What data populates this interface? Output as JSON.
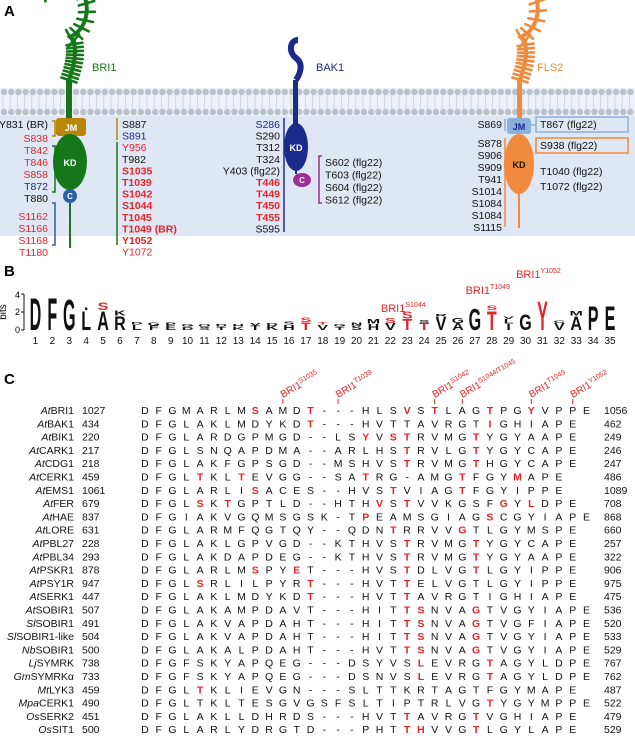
{
  "colors": {
    "red": "#e5242a",
    "navy": "#1c2a8c",
    "green": "#15771a",
    "brown": "#b8860b",
    "orange": "#f08a3c",
    "purple": "#9c2f95",
    "blue": "#2e5fa8",
    "lightblue": "#8ab0dc",
    "membrane_bg": "#e8eef8",
    "cytoplasm_bg": "#dde6f3"
  },
  "panelA": {
    "label": "A",
    "receptors": [
      {
        "name": "BRI1",
        "domains": {
          "jm": "JM",
          "kd": "KD",
          "ct": "C"
        },
        "left_sites": [
          {
            "t": "Y831 (BR)",
            "c": "dark"
          },
          {
            "t": "S838",
            "c": "red"
          },
          {
            "t": "T842",
            "c": "red"
          },
          {
            "t": "T846",
            "c": "red"
          },
          {
            "t": "S858",
            "c": "red"
          },
          {
            "t": "T872",
            "c": "navy"
          },
          {
            "t": "T880",
            "c": "dark"
          },
          {
            "t": "S1162",
            "c": "red"
          },
          {
            "t": "S1166",
            "c": "red"
          },
          {
            "t": "S1168",
            "c": "red"
          },
          {
            "t": "T1180",
            "c": "red"
          }
        ],
        "right_sites": [
          {
            "t": "S887",
            "c": "dark",
            "b": false
          },
          {
            "t": "S891",
            "c": "navy",
            "b": false
          },
          {
            "t": "Y956",
            "c": "red",
            "b": false
          },
          {
            "t": "T982",
            "c": "dark",
            "b": false
          },
          {
            "t": "S1035",
            "c": "red",
            "b": true
          },
          {
            "t": "T1039",
            "c": "red",
            "b": true
          },
          {
            "t": "S1042",
            "c": "red",
            "b": true
          },
          {
            "t": "S1044",
            "c": "red",
            "b": true
          },
          {
            "t": "T1045",
            "c": "red",
            "b": true
          },
          {
            "t": "T1049 (BR)",
            "c": "red",
            "b": true
          },
          {
            "t": "Y1052",
            "c": "red",
            "b": true
          },
          {
            "t": "Y1072",
            "c": "red",
            "b": false
          }
        ]
      },
      {
        "name": "BAK1",
        "domains": {
          "kd": "KD",
          "ct": "C"
        },
        "left_sites": [
          {
            "t": "S286",
            "c": "navy",
            "b": false
          },
          {
            "t": "S290",
            "c": "dark",
            "b": false
          },
          {
            "t": "T312",
            "c": "dark",
            "b": false
          },
          {
            "t": "T324",
            "c": "dark",
            "b": false
          },
          {
            "t": "Y403 (flg22)",
            "c": "dark",
            "b": false
          },
          {
            "t": "T446",
            "c": "red",
            "b": true
          },
          {
            "t": "T449",
            "c": "red",
            "b": true
          },
          {
            "t": "T450",
            "c": "red",
            "b": true
          },
          {
            "t": "T455",
            "c": "red",
            "b": true
          },
          {
            "t": "S595",
            "c": "dark",
            "b": false
          }
        ],
        "right_sites": [
          {
            "t": "S602 (flg22)",
            "c": "dark"
          },
          {
            "t": "T603 (flg22)",
            "c": "dark"
          },
          {
            "t": "S604 (flg22)",
            "c": "dark"
          },
          {
            "t": "S612 (flg22)",
            "c": "dark"
          }
        ]
      },
      {
        "name": "FLS2",
        "domains": {
          "jm": "JM",
          "kd": "KD"
        },
        "left_sites": [
          {
            "t": "S869"
          },
          {
            "t": "S878"
          },
          {
            "t": "S906"
          },
          {
            "t": "S909"
          },
          {
            "t": "T941"
          },
          {
            "t": "S1014"
          },
          {
            "t": "S1084"
          },
          {
            "t": "S1084"
          },
          {
            "t": "S1115"
          }
        ],
        "right_sites": [
          {
            "t": "T867 (flg22)"
          },
          {
            "t": "S938 (flg22)"
          },
          {
            "t": "T1040 (flg22)"
          },
          {
            "t": "T1072 (flg22)"
          }
        ]
      }
    ]
  },
  "panelB": {
    "label": "B",
    "ylabel": "bits",
    "yticks": [
      "0",
      "2",
      "4"
    ],
    "positions": [
      "1",
      "2",
      "3",
      "4",
      "5",
      "6",
      "7",
      "8",
      "9",
      "10",
      "11",
      "12",
      "13",
      "14",
      "15",
      "16",
      "17",
      "18",
      "19",
      "20",
      "21",
      "22",
      "23",
      "24",
      "25",
      "26",
      "27",
      "28",
      "29",
      "30",
      "31",
      "32",
      "33",
      "34",
      "35"
    ],
    "annotations": [
      {
        "base": "BRI1",
        "sup": "S1044",
        "pos": 23
      },
      {
        "base": "BRI1",
        "sup": "T1049",
        "pos": 28
      },
      {
        "base": "BRI1",
        "sup": "Y1052",
        "pos": 31
      }
    ],
    "logo": [
      {
        "pos": 1,
        "letters": [
          {
            "ch": "D",
            "h": 3.7,
            "c": "dark"
          }
        ]
      },
      {
        "pos": 2,
        "letters": [
          {
            "ch": "F",
            "h": 3.7,
            "c": "dark"
          }
        ]
      },
      {
        "pos": 3,
        "letters": [
          {
            "ch": "G",
            "h": 3.5,
            "c": "dark"
          }
        ]
      },
      {
        "pos": 4,
        "letters": [
          {
            "ch": "L",
            "h": 2.2,
            "c": "dark"
          },
          {
            "ch": "I",
            "h": 0.3,
            "c": "dark"
          }
        ]
      },
      {
        "pos": 5,
        "letters": [
          {
            "ch": "A",
            "h": 2.2,
            "c": "dark"
          },
          {
            "ch": "S",
            "h": 0.9,
            "c": "red"
          }
        ]
      },
      {
        "pos": 6,
        "letters": [
          {
            "ch": "R",
            "h": 1.6,
            "c": "dark"
          },
          {
            "ch": "K",
            "h": 0.6,
            "c": "dark"
          }
        ]
      },
      {
        "pos": 7,
        "letters": [
          {
            "ch": "L",
            "h": 0.6,
            "c": "dark"
          },
          {
            "ch": "D",
            "h": 0.3,
            "c": "dark"
          }
        ]
      },
      {
        "pos": 8,
        "letters": [
          {
            "ch": "F",
            "h": 0.5,
            "c": "dark"
          },
          {
            "ch": "G",
            "h": 0.4,
            "c": "dark"
          }
        ]
      },
      {
        "pos": 9,
        "letters": [
          {
            "ch": "E",
            "h": 0.5,
            "c": "dark"
          },
          {
            "ch": "P",
            "h": 0.4,
            "c": "dark"
          }
        ]
      },
      {
        "pos": 10,
        "letters": [
          {
            "ch": "D",
            "h": 0.4,
            "c": "dark"
          },
          {
            "ch": "G",
            "h": 0.3,
            "c": "dark"
          }
        ]
      },
      {
        "pos": 11,
        "letters": [
          {
            "ch": "S",
            "h": 0.4,
            "c": "dark"
          },
          {
            "ch": "Q",
            "h": 0.3,
            "c": "dark"
          }
        ]
      },
      {
        "pos": 12,
        "letters": [
          {
            "ch": "T",
            "h": 0.4,
            "c": "dark"
          },
          {
            "ch": "D",
            "h": 0.3,
            "c": "dark"
          }
        ]
      },
      {
        "pos": 13,
        "letters": [
          {
            "ch": "K",
            "h": 0.4,
            "c": "dark"
          },
          {
            "ch": "H",
            "h": 0.3,
            "c": "dark"
          }
        ]
      },
      {
        "pos": 14,
        "letters": [
          {
            "ch": "T",
            "h": 0.5,
            "c": "dark"
          },
          {
            "ch": "V",
            "h": 0.3,
            "c": "dark"
          }
        ]
      },
      {
        "pos": 15,
        "letters": [
          {
            "ch": "K",
            "h": 0.5,
            "c": "dark"
          },
          {
            "ch": "D",
            "h": 0.3,
            "c": "dark"
          }
        ]
      },
      {
        "pos": 16,
        "letters": [
          {
            "ch": "H",
            "h": 0.6,
            "c": "dark"
          },
          {
            "ch": "S",
            "h": 0.4,
            "c": "dark"
          }
        ]
      },
      {
        "pos": 17,
        "letters": [
          {
            "ch": "T",
            "h": 0.9,
            "c": "red"
          },
          {
            "ch": "S",
            "h": 0.5,
            "c": "red"
          }
        ]
      },
      {
        "pos": 18,
        "letters": [
          {
            "ch": "V",
            "h": 0.6,
            "c": "dark"
          },
          {
            "ch": "T",
            "h": 0.3,
            "c": "red"
          }
        ]
      },
      {
        "pos": 19,
        "letters": [
          {
            "ch": "T",
            "h": 0.4,
            "c": "dark"
          },
          {
            "ch": "G",
            "h": 0.3,
            "c": "dark"
          }
        ]
      },
      {
        "pos": 20,
        "letters": [
          {
            "ch": "S",
            "h": 0.5,
            "c": "dark"
          },
          {
            "ch": "N",
            "h": 0.4,
            "c": "dark"
          }
        ]
      },
      {
        "pos": 21,
        "letters": [
          {
            "ch": "H",
            "h": 0.7,
            "c": "dark"
          },
          {
            "ch": "M",
            "h": 0.5,
            "c": "dark"
          }
        ]
      },
      {
        "pos": 22,
        "letters": [
          {
            "ch": "V",
            "h": 0.8,
            "c": "dark"
          },
          {
            "ch": "S",
            "h": 0.6,
            "c": "red"
          }
        ]
      },
      {
        "pos": 23,
        "letters": [
          {
            "ch": "T",
            "h": 1.3,
            "c": "red"
          },
          {
            "ch": "S",
            "h": 0.8,
            "c": "red"
          }
        ]
      },
      {
        "pos": 24,
        "letters": [
          {
            "ch": "T",
            "h": 0.8,
            "c": "red"
          },
          {
            "ch": "S",
            "h": 0.4,
            "c": "dark"
          }
        ]
      },
      {
        "pos": 25,
        "letters": [
          {
            "ch": "V",
            "h": 1.5,
            "c": "dark"
          },
          {
            "ch": "R",
            "h": 0.3,
            "c": "dark"
          }
        ]
      },
      {
        "pos": 26,
        "letters": [
          {
            "ch": "A",
            "h": 0.8,
            "c": "dark"
          },
          {
            "ch": "G",
            "h": 0.6,
            "c": "dark"
          }
        ]
      },
      {
        "pos": 27,
        "letters": [
          {
            "ch": "G",
            "h": 2.5,
            "c": "dark"
          }
        ]
      },
      {
        "pos": 28,
        "letters": [
          {
            "ch": "T",
            "h": 2.2,
            "c": "red"
          },
          {
            "ch": "S",
            "h": 0.5,
            "c": "red"
          }
        ]
      },
      {
        "pos": 29,
        "letters": [
          {
            "ch": "I",
            "h": 0.7,
            "c": "dark"
          },
          {
            "ch": "L",
            "h": 0.5,
            "c": "dark"
          },
          {
            "ch": "V",
            "h": 0.3,
            "c": "dark"
          }
        ]
      },
      {
        "pos": 30,
        "letters": [
          {
            "ch": "G",
            "h": 1.8,
            "c": "dark"
          }
        ]
      },
      {
        "pos": 31,
        "letters": [
          {
            "ch": "Y",
            "h": 3.3,
            "c": "red"
          }
        ]
      },
      {
        "pos": 32,
        "letters": [
          {
            "ch": "V",
            "h": 0.8,
            "c": "dark"
          },
          {
            "ch": "C",
            "h": 0.3,
            "c": "dark"
          }
        ]
      },
      {
        "pos": 33,
        "letters": [
          {
            "ch": "A",
            "h": 1.6,
            "c": "dark"
          },
          {
            "ch": "M",
            "h": 0.5,
            "c": "dark"
          }
        ]
      },
      {
        "pos": 34,
        "letters": [
          {
            "ch": "P",
            "h": 2.8,
            "c": "dark"
          }
        ]
      },
      {
        "pos": 35,
        "letters": [
          {
            "ch": "E",
            "h": 2.8,
            "c": "dark"
          }
        ]
      }
    ]
  },
  "panelC": {
    "label": "C",
    "headers": [
      {
        "base": "BRI1",
        "sup": "S1035",
        "col": 10
      },
      {
        "base": "BRI1",
        "sup": "T1039",
        "col": 14
      },
      {
        "base": "BRI1",
        "sup": "S1042",
        "col": 21
      },
      {
        "base": "BRI1",
        "sup": "S1044/T1045",
        "col": 23
      },
      {
        "base": "BRI1",
        "sup": "T1049",
        "col": 28
      },
      {
        "base": "BRI1",
        "sup": "Y1052",
        "col": 31
      }
    ],
    "rows": [
      {
        "sp": "At",
        "nm": "BRI1",
        "s": "1027",
        "seq": "DFGMARLMSAMDT---HLSVSTLAGTPGYVPPE",
        "e": "1056",
        "red": [
          8,
          12,
          19,
          21,
          25,
          28
        ]
      },
      {
        "sp": "At",
        "nm": "BAK1",
        "s": "434",
        "seq": "DFGLAKLMDYKDT---HVTTAVRGTIGHIAPE",
        "e": "462",
        "red": [
          12,
          25
        ]
      },
      {
        "sp": "At",
        "nm": "BIK1",
        "s": "220",
        "seq": "DFGLARDGPMGD--LSYVSTRVMGTYGYAAPE",
        "e": "249",
        "red": [
          16,
          18,
          19,
          24
        ]
      },
      {
        "sp": "At",
        "nm": "CARK1",
        "s": "217",
        "seq": "DFGLSNQAPDMA--ARLHSTRVLGTYGYCAPE",
        "e": "246",
        "red": [
          19,
          24
        ]
      },
      {
        "sp": "At",
        "nm": "CDG1",
        "s": "218",
        "seq": "DFGLAKFGPSGD--MSHVSTRVMGTHGYCAPE",
        "e": "247",
        "red": [
          19,
          24
        ]
      },
      {
        "sp": "At",
        "nm": "CERK1",
        "s": "459",
        "seq": "DFGLTKLTEVGG--SATRG-AMGTFGYMAPE",
        "e": "486",
        "red": [
          4,
          7,
          16,
          23,
          27
        ]
      },
      {
        "sp": "At",
        "nm": "EMS1",
        "s": "1061",
        "seq": "DFGLARLISACES--HVSTVIAGTFGYIPPE",
        "e": "1089",
        "red": [
          8,
          18,
          23
        ]
      },
      {
        "sp": "At",
        "nm": "FER",
        "s": "679",
        "seq": "DFGLSKTGPTLD--HTHVSTVVKGSFGYLDPE",
        "e": "708",
        "red": [
          4,
          6,
          17,
          19,
          26,
          28
        ]
      },
      {
        "sp": "At",
        "nm": "HAE",
        "s": "837",
        "seq": "DFGIAKVGQMSGSK-TPEAMSGIAGSCGYIAPE",
        "e": "868",
        "red": [
          16,
          25
        ]
      },
      {
        "sp": "At",
        "nm": "LORE",
        "s": "631",
        "seq": "DFGLARMFQGTQY--QDNTRRVVGTLGYMSPE",
        "e": "660",
        "red": [
          18,
          23
        ]
      },
      {
        "sp": "At",
        "nm": "PBL27",
        "s": "228",
        "seq": "DFGLAKLGPVGD--KTHVSTRVMGTYGYCAPE",
        "e": "257",
        "red": [
          19,
          24
        ]
      },
      {
        "sp": "At",
        "nm": "PBL34",
        "s": "293",
        "seq": "DFGLAKDAPDEG--KTHVSTRVMGTYGYAAPE",
        "e": "322",
        "red": [
          19,
          24
        ]
      },
      {
        "sp": "At",
        "nm": "PSKR1",
        "s": "878",
        "seq": "DFGLARLMSPYET---HVSTDLVGTLGYIPPE",
        "e": "906",
        "red": [
          8,
          11,
          19,
          24
        ]
      },
      {
        "sp": "At",
        "nm": "PSY1R",
        "s": "947",
        "seq": "DFGLSRLILPYRT---HVTTELVGTLGYIPPE",
        "e": "975",
        "red": [
          4,
          12,
          19
        ]
      },
      {
        "sp": "At",
        "nm": "SERK1",
        "s": "447",
        "seq": "DFGLAKLMDYKDT---HVTTAVRGTIGHIAPE",
        "e": "475",
        "red": [
          12,
          19
        ]
      },
      {
        "sp": "At",
        "nm": "SOBIR1",
        "s": "507",
        "seq": "DFGLAKAMPDAVT---HITTSNVAGTVGYIAPE",
        "e": "536",
        "red": [
          19,
          20,
          24
        ]
      },
      {
        "sp": "Sl",
        "nm": "SOBIR1",
        "s": "491",
        "seq": "DFGLAKVAPDAHT---HITTSNVAGTVGFIAPE",
        "e": "520",
        "red": [
          19,
          20,
          24
        ]
      },
      {
        "sp": "Sl",
        "nm": "SOBIR1-like",
        "s": "504",
        "seq": "DFGLAKVAPDAHT---HITTSNVAGTVGYIAPE",
        "e": "533",
        "red": [
          19,
          20,
          24
        ]
      },
      {
        "sp": "Nb",
        "nm": "SOBIR1",
        "s": "500",
        "seq": "DFGLAKALPDAHT---HVTTSNVAGTVGYIAPE",
        "e": "529",
        "red": [
          19,
          20,
          24
        ]
      },
      {
        "sp": "Lj",
        "nm": "SYMRK",
        "s": "738",
        "seq": "DFGFSKYAPQEG---DSYVSLEVRGTAGYLDPE",
        "e": "767",
        "red": [
          20,
          25
        ]
      },
      {
        "sp": "Gm",
        "nm": "SYMRKα",
        "s": "733",
        "seq": "DFGFSKYAPQEG---DSNVSLEVRGTAGYLDPE",
        "e": "762",
        "red": [
          20,
          25
        ]
      },
      {
        "sp": "Mt",
        "nm": "LYK3",
        "s": "459",
        "seq": "DFGLTKLIEVGN---SLTTKRTAGTFGYMAPE",
        "e": "487",
        "red": [
          4
        ]
      },
      {
        "sp": "Mpa",
        "nm": "CERK1",
        "s": "490",
        "seq": "DFGLTKLTESGVGSFSLTIPTRLVGTYGYMPPE",
        "e": "522",
        "red": [
          25
        ]
      },
      {
        "sp": "Os",
        "nm": "SERK2",
        "s": "451",
        "seq": "DFGLAKLLDHRDS---HVTTAVRGTVGHIAPE",
        "e": "479",
        "red": [
          19,
          24
        ]
      },
      {
        "sp": "Os",
        "nm": "SIT1",
        "s": "500",
        "seq": "DFGLARLYDRGTD---PHTTHVVGTLGYLAPE",
        "e": "529",
        "red": [
          19,
          20,
          24
        ]
      }
    ]
  }
}
